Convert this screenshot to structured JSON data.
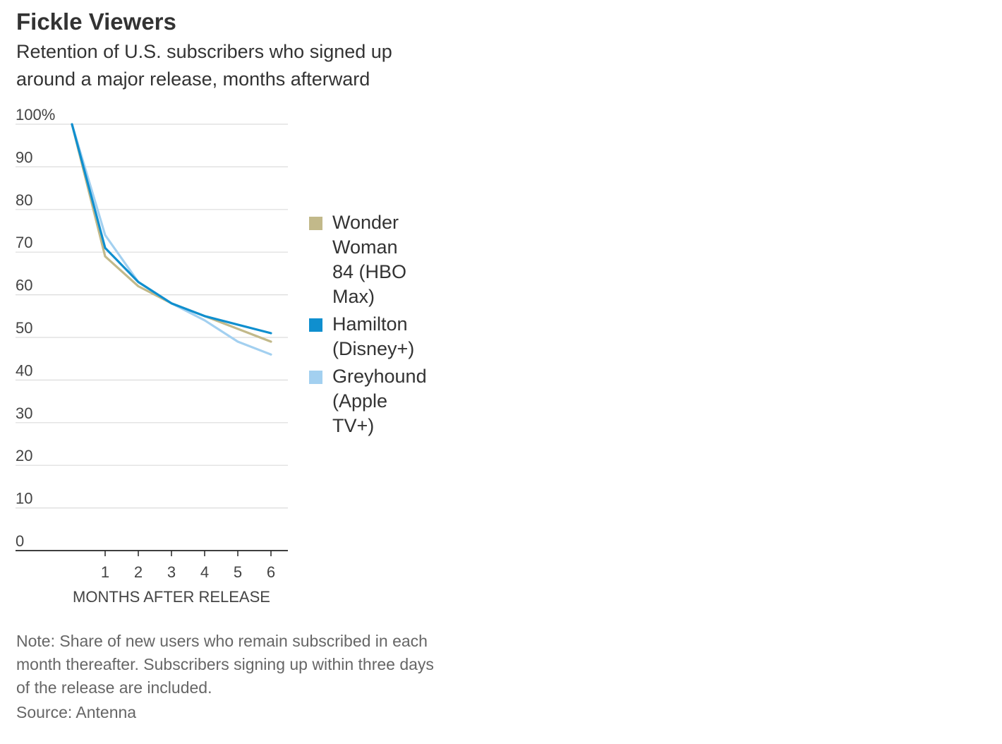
{
  "chart_data": {
    "type": "line",
    "title": "Fickle Viewers",
    "subtitle": "Retention of U.S. subscribers who signed up around a major release, months afterward",
    "xlabel": "MONTHS AFTER RELEASE",
    "ylabel": "",
    "x": [
      0,
      1,
      2,
      3,
      4,
      5,
      6
    ],
    "x_tick_labels": [
      "1",
      "2",
      "3",
      "4",
      "5",
      "6"
    ],
    "x_tick_values": [
      1,
      2,
      3,
      4,
      5,
      6
    ],
    "xlim": [
      -1.6,
      6.5
    ],
    "ylim": [
      0,
      100
    ],
    "y_ticks": [
      0,
      10,
      20,
      30,
      40,
      50,
      60,
      70,
      80,
      90,
      100
    ],
    "y_tick_labels": [
      "0",
      "10",
      "20",
      "30",
      "40",
      "50",
      "60",
      "70",
      "80",
      "90",
      "100%"
    ],
    "grid": true,
    "legend_position": "right",
    "series": [
      {
        "name": "Wonder Woman 84 (HBO Max)",
        "color": "#c2b98a",
        "values": [
          100,
          69,
          62,
          58,
          55,
          52,
          49
        ]
      },
      {
        "name": "Hamilton (Disney+)",
        "color": "#0f8fcf",
        "values": [
          100,
          71,
          63,
          58,
          55,
          53,
          51
        ]
      },
      {
        "name": "Greyhound (Apple TV+)",
        "color": "#a3d0f0",
        "values": [
          100,
          74,
          63,
          58,
          54,
          49,
          46
        ]
      }
    ],
    "legend": [
      {
        "lines": [
          "Wonder",
          "Woman",
          "84 (HBO",
          "Max)"
        ],
        "color": "#c2b98a"
      },
      {
        "lines": [
          "Hamilton",
          "(Disney+)"
        ],
        "color": "#0f8fcf"
      },
      {
        "lines": [
          "Greyhound",
          "(Apple",
          "TV+)"
        ],
        "color": "#a3d0f0"
      }
    ],
    "note": "Note: Share of new users who remain subscribed in each month thereafter. Subscribers signing up within three days of the release are included.",
    "source": "Source: Antenna"
  }
}
